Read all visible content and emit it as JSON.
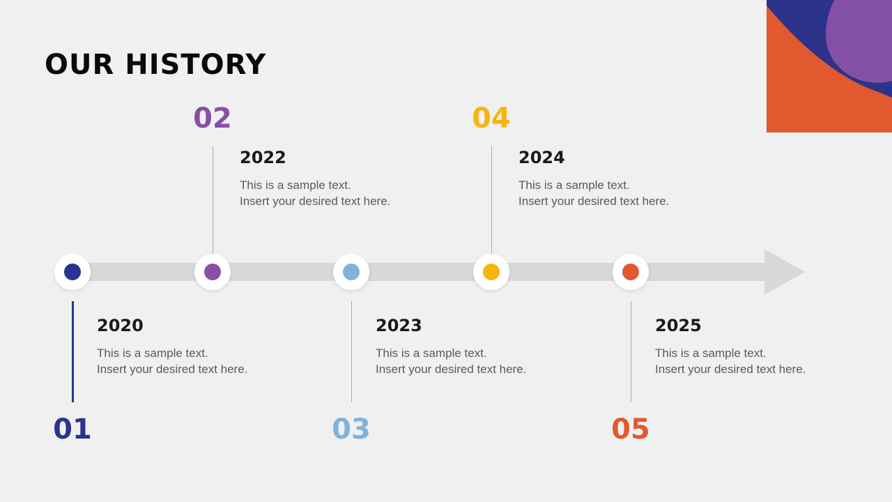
{
  "slide": {
    "title": "OUR HISTORY",
    "background_color": "#f0f0f1"
  },
  "decor": {
    "rect_color": "#e2592f",
    "blue_shape_color": "#2d3389",
    "purple_blob_color": "#8450a5"
  },
  "timeline": {
    "bar_color": "#d8d8d8",
    "items": [
      {
        "number": "01",
        "year": "2020",
        "desc_line1": "This is a sample text.",
        "desc_line2": "Insert your desired text here.",
        "color": "#2b3390",
        "side": "below"
      },
      {
        "number": "02",
        "year": "2022",
        "desc_line1": "This is a sample text.",
        "desc_line2": "Insert your desired text here.",
        "color": "#8750a5",
        "side": "above"
      },
      {
        "number": "03",
        "year": "2023",
        "desc_line1": "This is a sample text.",
        "desc_line2": "Insert your desired text here.",
        "color": "#7fb3dc",
        "side": "below"
      },
      {
        "number": "04",
        "year": "2024",
        "desc_line1": "This is a sample text.",
        "desc_line2": "Insert your desired text here.",
        "color": "#f7b50c",
        "side": "above"
      },
      {
        "number": "05",
        "year": "2025",
        "desc_line1": "This is a sample text.",
        "desc_line2": "Insert your desired text here.",
        "color": "#e2592f",
        "side": "below"
      }
    ]
  }
}
